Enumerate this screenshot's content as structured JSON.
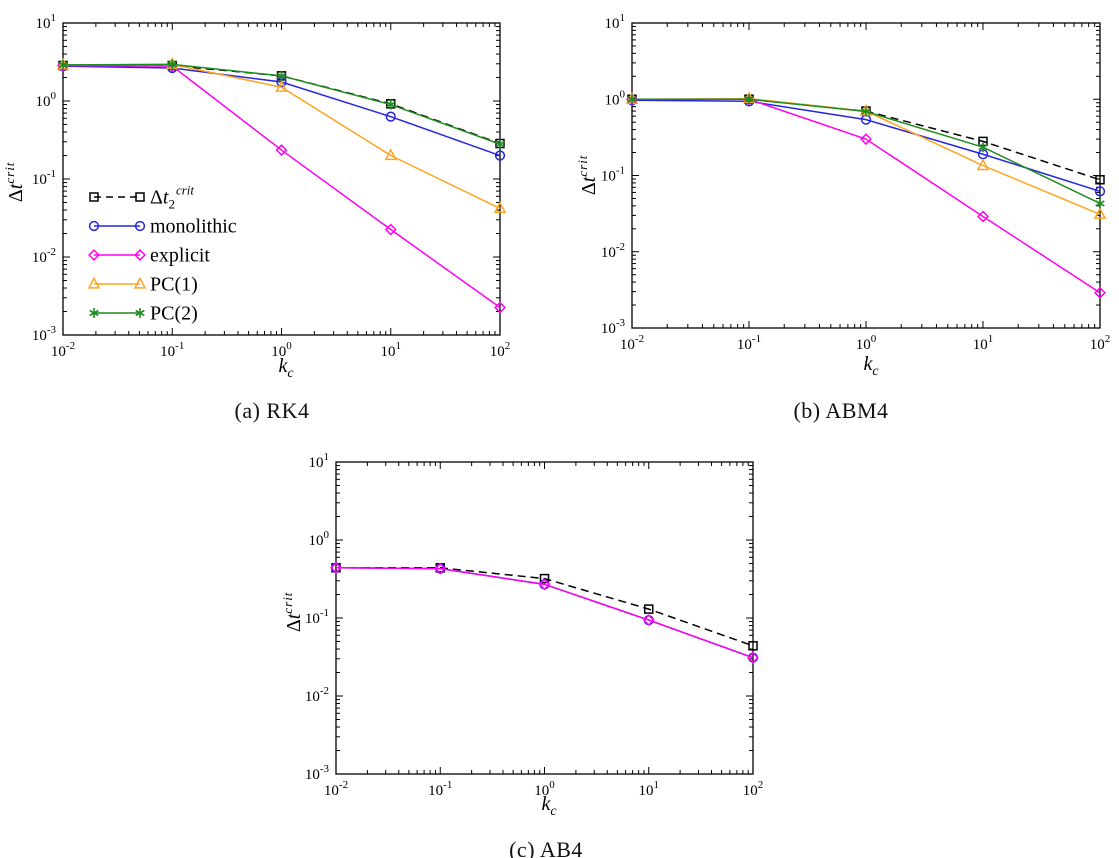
{
  "figure": {
    "background": "#ffffff",
    "colors": {
      "reference_black": "#000000",
      "monolithic_blue": "#2525e0",
      "explicit_magenta": "#ff00f0",
      "pc1_orange": "#ffa420",
      "pc2_green": "#1f8c1f"
    }
  },
  "chart_data": [
    {
      "id": "a",
      "type": "line",
      "caption": "(a) RK4",
      "xlabel": "k_c",
      "ylabel": "Δt^crit",
      "xlabel_parts": {
        "base": "k",
        "sub": "c",
        "sub_italic": true
      },
      "ylabel_parts": {
        "pre": "Δ",
        "base": "t",
        "sup": "crit"
      },
      "x_scale": "log",
      "y_scale": "log",
      "grid": false,
      "xlim": [
        0.01,
        100
      ],
      "ylim": [
        0.001,
        10
      ],
      "x_tick_exponents": [
        -2,
        -1,
        0,
        1,
        2
      ],
      "y_tick_exponents": [
        1,
        0,
        -1,
        -2,
        -3
      ],
      "show_legend": true,
      "legend_position": "lower-left",
      "x": [
        0.01,
        0.1,
        1,
        10,
        100
      ],
      "series": [
        {
          "name": "Δt2^crit",
          "label_parts": {
            "pre": "Δ",
            "base": "t",
            "sub": "2",
            "sup": "crit"
          },
          "color": "#000000",
          "line": "dashed",
          "marker": "square",
          "values": [
            2.85,
            2.85,
            2.1,
            0.92,
            0.285
          ]
        },
        {
          "name": "monolithic",
          "label_parts": {
            "plain": "monolithic"
          },
          "color": "#2525e0",
          "line": "solid",
          "marker": "circle",
          "values": [
            2.8,
            2.65,
            1.75,
            0.63,
            0.2
          ]
        },
        {
          "name": "explicit",
          "label_parts": {
            "plain": "explicit"
          },
          "color": "#ff00f0",
          "line": "solid",
          "marker": "diamond",
          "values": [
            2.85,
            2.8,
            0.235,
            0.0225,
            0.00225
          ]
        },
        {
          "name": "PC(1)",
          "label_parts": {
            "plain": "PC(1)"
          },
          "color": "#ffa420",
          "line": "solid",
          "marker": "triangle",
          "values": [
            2.9,
            2.95,
            1.5,
            0.2,
            0.042
          ]
        },
        {
          "name": "PC(2)",
          "label_parts": {
            "plain": "PC(2)"
          },
          "color": "#1f8c1f",
          "line": "solid",
          "marker": "asterisk",
          "values": [
            2.9,
            2.95,
            2.1,
            0.9,
            0.28
          ]
        }
      ]
    },
    {
      "id": "b",
      "type": "line",
      "caption": "(b) ABM4",
      "xlabel": "k_c",
      "ylabel": "Δt^crit",
      "xlabel_parts": {
        "base": "k",
        "sub": "c",
        "sub_italic": true
      },
      "ylabel_parts": {
        "pre": "Δ",
        "base": "t",
        "sup": "crit"
      },
      "x_scale": "log",
      "y_scale": "log",
      "grid": false,
      "xlim": [
        0.01,
        100
      ],
      "ylim": [
        0.001,
        10
      ],
      "x_tick_exponents": [
        -2,
        -1,
        0,
        1,
        2
      ],
      "y_tick_exponents": [
        1,
        0,
        -1,
        -2,
        -3
      ],
      "show_legend": false,
      "x": [
        0.01,
        0.1,
        1,
        10,
        100
      ],
      "series": [
        {
          "name": "Δt2^crit",
          "label_parts": {
            "pre": "Δ",
            "base": "t",
            "sub": "2",
            "sup": "crit"
          },
          "color": "#000000",
          "line": "dashed",
          "marker": "square",
          "values": [
            1.0,
            1.0,
            0.7,
            0.28,
            0.088
          ]
        },
        {
          "name": "monolithic",
          "label_parts": {
            "plain": "monolithic"
          },
          "color": "#2525e0",
          "line": "solid",
          "marker": "circle",
          "values": [
            0.97,
            0.94,
            0.54,
            0.19,
            0.062
          ]
        },
        {
          "name": "explicit",
          "label_parts": {
            "plain": "explicit"
          },
          "color": "#ff00f0",
          "line": "solid",
          "marker": "diamond",
          "values": [
            1.0,
            1.0,
            0.3,
            0.029,
            0.0029
          ]
        },
        {
          "name": "PC(1)",
          "label_parts": {
            "plain": "PC(1)"
          },
          "color": "#ffa420",
          "line": "solid",
          "marker": "triangle",
          "values": [
            1.0,
            1.02,
            0.7,
            0.135,
            0.031
          ]
        },
        {
          "name": "PC(2)",
          "label_parts": {
            "plain": "PC(2)"
          },
          "color": "#1f8c1f",
          "line": "solid",
          "marker": "asterisk",
          "values": [
            1.0,
            1.0,
            0.69,
            0.235,
            0.043
          ]
        }
      ]
    },
    {
      "id": "c",
      "type": "line",
      "caption": "(c) AB4",
      "xlabel": "k_c",
      "ylabel": "Δt^crit",
      "xlabel_parts": {
        "base": "k",
        "sub": "c",
        "sub_italic": true
      },
      "ylabel_parts": {
        "pre": "Δ",
        "base": "t",
        "sup": "crit"
      },
      "x_scale": "log",
      "y_scale": "log",
      "grid": false,
      "xlim": [
        0.01,
        100
      ],
      "ylim": [
        0.001,
        10
      ],
      "x_tick_exponents": [
        -2,
        -1,
        0,
        1,
        2
      ],
      "y_tick_exponents": [
        1,
        0,
        -1,
        -2,
        -3
      ],
      "show_legend": false,
      "x": [
        0.01,
        0.1,
        1,
        10,
        100
      ],
      "series": [
        {
          "name": "Δt2^crit",
          "label_parts": {
            "pre": "Δ",
            "base": "t",
            "sub": "2",
            "sup": "crit"
          },
          "color": "#000000",
          "line": "dashed",
          "marker": "square",
          "values": [
            0.44,
            0.44,
            0.32,
            0.13,
            0.044
          ]
        },
        {
          "name": "monolithic",
          "label_parts": {
            "plain": "monolithic"
          },
          "color": "#2525e0",
          "line": "solid",
          "marker": "circle",
          "values": [
            0.44,
            0.43,
            0.27,
            0.094,
            0.031
          ]
        },
        {
          "name": "explicit",
          "label_parts": {
            "plain": "explicit"
          },
          "color": "#ff00f0",
          "line": "solid",
          "marker": "diamond",
          "values": [
            0.44,
            0.43,
            0.27,
            0.094,
            0.031
          ]
        }
      ]
    }
  ]
}
